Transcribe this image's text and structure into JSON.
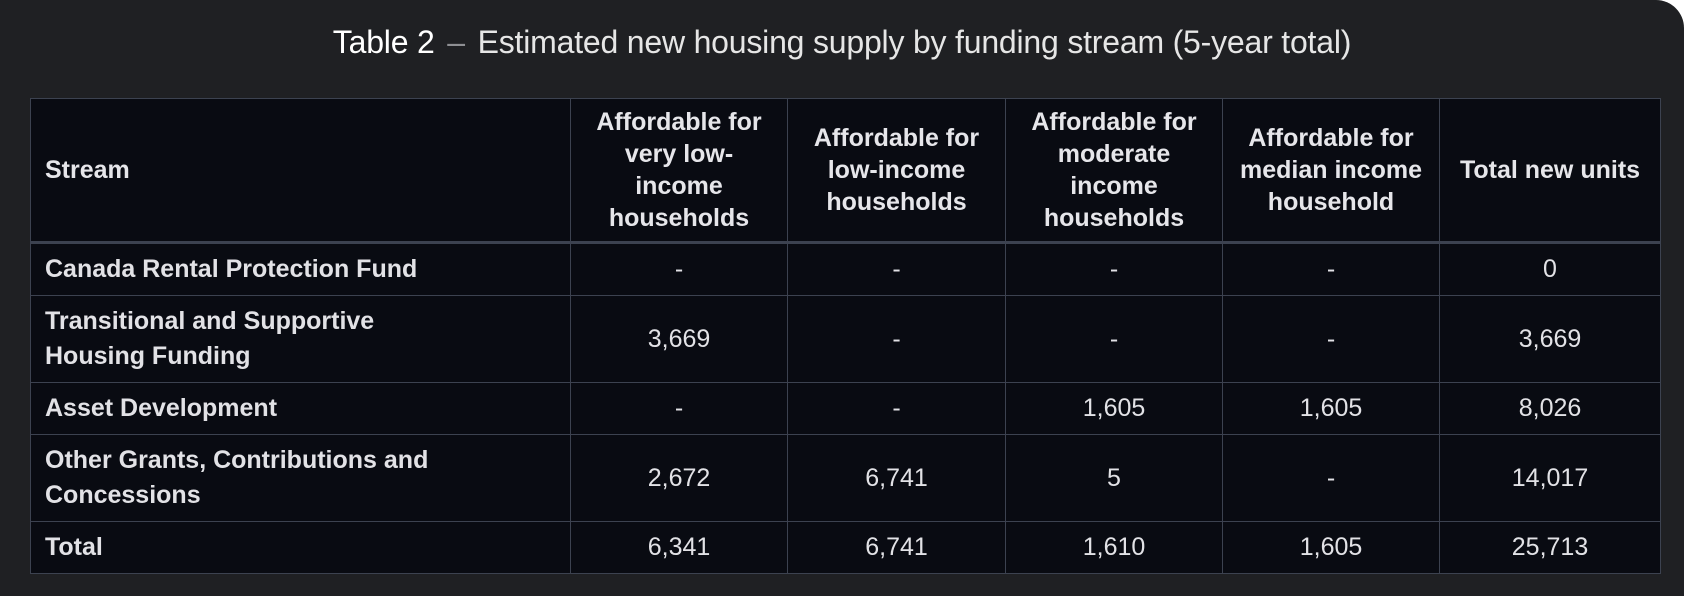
{
  "caption": {
    "label": "Table 2",
    "separator": "–",
    "text": "Estimated new housing supply by funding stream (5-year total)"
  },
  "table": {
    "headers": [
      "Stream",
      "Affordable for very low-income households",
      "Affordable for low-income households",
      "Affordable for moderate income households",
      "Affordable for median income household",
      "Total new units"
    ],
    "rows": [
      [
        "Canada Rental Protection Fund",
        "-",
        "-",
        "-",
        "-",
        "0"
      ],
      [
        "Transitional and Supportive Housing Funding",
        "3,669",
        "-",
        "-",
        "-",
        "3,669"
      ],
      [
        "Asset Development",
        "-",
        "-",
        "1,605",
        "1,605",
        "8,026"
      ],
      [
        "Other Grants, Contributions and Concessions",
        "2,672",
        "6,741",
        "5",
        "-",
        "14,017"
      ],
      [
        "Total",
        "6,341",
        "6,741",
        "1,610",
        "1,605",
        "25,713"
      ]
    ]
  },
  "colors": {
    "panel_background": "#1f2023",
    "table_background": "#090b12",
    "grid_lines": "#3c4250",
    "text": "#e9e9ec"
  }
}
